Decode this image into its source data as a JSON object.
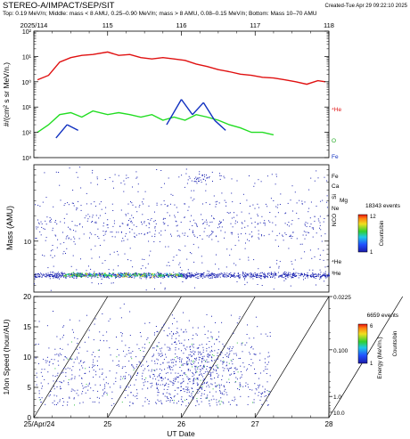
{
  "header": {
    "title": "STEREO-A/IMPACT/SEP/SIT",
    "created": "Created-Tue Apr 29 09:22:10 2025",
    "subtitle": "Top: 0.19 MeV/n; Middle: mass < 8 AMU, 0.25–0.90 MeV/n; mass > 8 AMU, 0.08–0.15 MeV/n; Bottom: Mass 10–70 AMU"
  },
  "colors": {
    "he4": "#e01010",
    "o": "#22dd22",
    "fe": "#1030c0",
    "scatter": "#1820b0",
    "axis": "#000000"
  },
  "chart_data": [
    {
      "type": "line",
      "panel": "flux",
      "top_axis_ticks": [
        "2025/114",
        "115",
        "116",
        "117",
        "118"
      ],
      "xlim": [
        0,
        4
      ],
      "ylabel": "#/(cm² s sr MeV/n.)",
      "yscale": "log",
      "ylim": [
        0.001,
        100
      ],
      "ytick_labels": [
        "10³",
        "10²",
        "10¹",
        "10⁰",
        "10¹",
        "10²"
      ],
      "series": [
        {
          "name": "⁴He",
          "color": "#e01010",
          "x": [
            0.05,
            0.2,
            0.35,
            0.5,
            0.65,
            0.8,
            1.0,
            1.15,
            1.3,
            1.45,
            1.6,
            1.75,
            1.9,
            2.05,
            2.2,
            2.35,
            2.5,
            2.65,
            2.8,
            2.95,
            3.1,
            3.25,
            3.4,
            3.55,
            3.7,
            3.85,
            3.95
          ],
          "values": [
            1.2,
            1.8,
            6,
            9,
            11,
            12,
            15,
            11,
            12,
            9,
            8,
            9,
            8,
            7,
            5,
            4,
            3,
            2.5,
            2,
            1.8,
            1.5,
            1.4,
            1.2,
            1.0,
            0.8,
            1.1,
            1.0
          ]
        },
        {
          "name": "O",
          "color": "#22dd22",
          "x": [
            0.05,
            0.2,
            0.35,
            0.5,
            0.65,
            0.8,
            1.0,
            1.15,
            1.3,
            1.45,
            1.6,
            1.75,
            1.9,
            2.05,
            2.2,
            2.35,
            2.5,
            2.65,
            2.8,
            2.95,
            3.1,
            3.25
          ],
          "values": [
            0.01,
            0.02,
            0.05,
            0.06,
            0.04,
            0.07,
            0.05,
            0.06,
            0.05,
            0.04,
            0.05,
            0.03,
            0.04,
            0.03,
            0.05,
            0.04,
            0.03,
            0.02,
            0.015,
            0.01,
            0.01,
            0.008
          ]
        },
        {
          "name": "Fe",
          "color": "#1030c0",
          "x": [
            0.3,
            0.45,
            0.6,
            0.9,
            1.1,
            1.5,
            1.8,
            2.0,
            2.15,
            2.3,
            2.45,
            2.6
          ],
          "values": [
            0.006,
            0.02,
            0.012,
            0.015,
            0.01,
            0.012,
            0.02,
            0.2,
            0.05,
            0.15,
            0.03,
            0.012
          ]
        }
      ]
    },
    {
      "type": "scatter",
      "panel": "mass",
      "xlim": [
        0,
        4
      ],
      "ylabel": "Mass (AMU)",
      "ytick_labels": [
        "10"
      ],
      "element_labels": [
        "Fe",
        "Ca",
        "Si",
        "Mg",
        "Ne",
        "O",
        "C",
        "N",
        "⁴He",
        "³He"
      ],
      "event_count": "18343 events",
      "colorbar": {
        "label": "Counts/bin",
        "min": "1",
        "max": "12"
      }
    },
    {
      "type": "scatter",
      "panel": "speed",
      "xlabel": "UT Date",
      "xtick_labels": [
        "25/Apr/24",
        "25",
        "26",
        "27",
        "28"
      ],
      "xlim": [
        0,
        4
      ],
      "ylabel": "1/Ion Speed (hour/AU)",
      "ylim": [
        0,
        20
      ],
      "ytick_labels": [
        "0",
        "5",
        "10",
        "15",
        "20"
      ],
      "right_ylabel": "Energy (MeV/n.)",
      "right_tick_labels": [
        "0.0225",
        "0.100",
        "1.0",
        "10.0"
      ],
      "event_count": "6659 events",
      "colorbar": {
        "label": "Counts/bin",
        "min": "1",
        "max": "6"
      }
    }
  ]
}
